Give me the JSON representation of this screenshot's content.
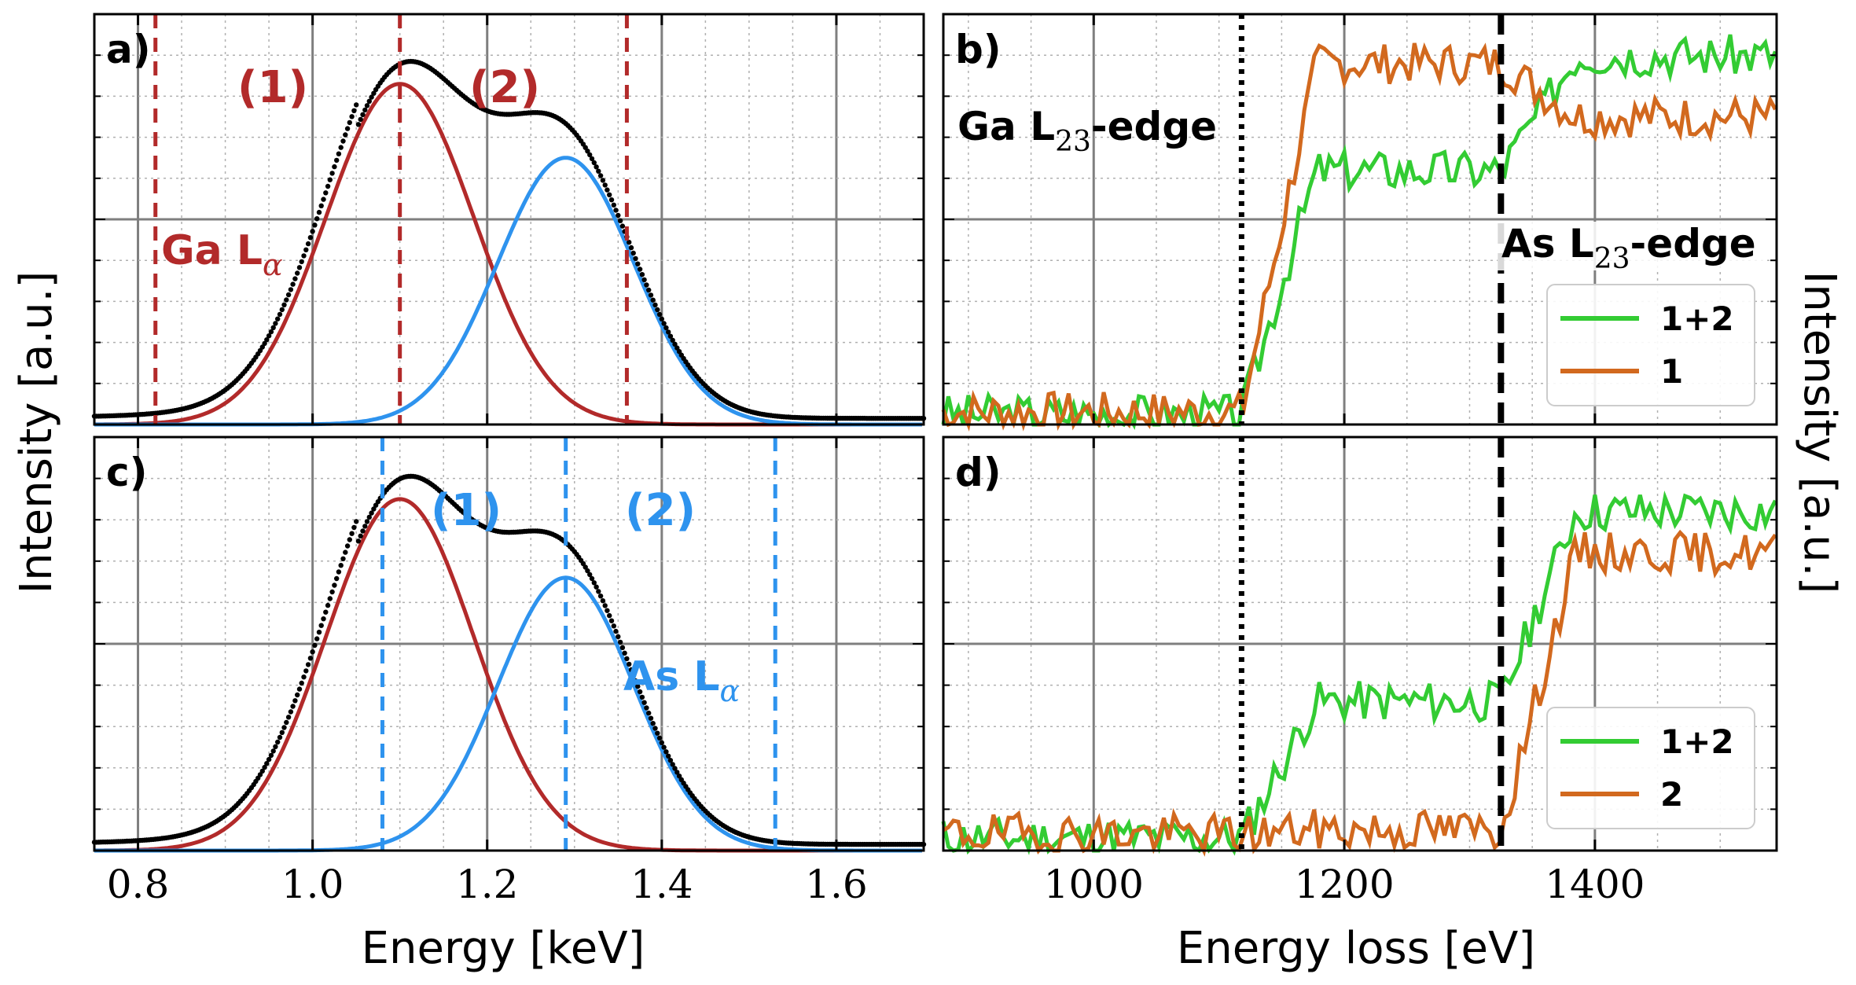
{
  "figure": {
    "ylabel_left": "Intensity [a.u.]",
    "ylabel_right": "Intensity [a.u.]",
    "xlabel_left": "Energy [keV]",
    "xlabel_right": "Energy loss [eV]"
  },
  "colors": {
    "red": "#b22a2a",
    "blue": "#2e93ee",
    "black": "#000000",
    "green": "#33cc33",
    "orange": "#d2691e",
    "major_grid": "#7f7f7f",
    "minor_grid": "#b0b0b0"
  },
  "chart_data": [
    {
      "id": "a",
      "type": "line",
      "panel_label": "a)",
      "xlim": [
        0.75,
        1.7
      ],
      "ylim": [
        0,
        1.0
      ],
      "xticks": [
        0.8,
        1.0,
        1.2,
        1.4,
        1.6
      ],
      "tick_labels": [
        "0.8",
        "1.0",
        "1.2",
        "1.4",
        "1.6"
      ],
      "gaussians": [
        {
          "name": "Ga peak",
          "center": 1.1,
          "amp": 0.83,
          "sigma": 0.085,
          "color": "red"
        },
        {
          "name": "As peak",
          "center": 1.29,
          "amp": 0.65,
          "sigma": 0.078,
          "color": "blue"
        }
      ],
      "data_series": {
        "name": "measured spectrum",
        "color": "black",
        "baseline": 0.015
      },
      "window_lines": {
        "color": "red",
        "x": [
          0.82,
          1.1,
          1.36
        ]
      },
      "annotations": [
        {
          "text": "(1)",
          "x": 0.955,
          "y": 0.86
        },
        {
          "text": "(2)",
          "x": 1.18,
          "y": 0.86
        },
        {
          "text": "Ga L",
          "sub": "α",
          "x": 0.83,
          "y": 0.4
        }
      ]
    },
    {
      "id": "c",
      "type": "line",
      "panel_label": "c)",
      "xlim": [
        0.75,
        1.7
      ],
      "ylim": [
        0,
        1.0
      ],
      "xticks": [
        0.8,
        1.0,
        1.2,
        1.4,
        1.6
      ],
      "tick_labels": [
        "0.8",
        "1.0",
        "1.2",
        "1.4",
        "1.6"
      ],
      "gaussians": [
        {
          "name": "Ga peak",
          "center": 1.1,
          "amp": 0.85,
          "sigma": 0.085,
          "color": "red"
        },
        {
          "name": "As peak",
          "center": 1.29,
          "amp": 0.66,
          "sigma": 0.078,
          "color": "blue"
        }
      ],
      "data_series": {
        "name": "measured spectrum",
        "color": "black",
        "baseline": 0.015
      },
      "window_lines": {
        "color": "blue",
        "x": [
          1.08,
          1.29,
          1.53
        ]
      },
      "annotations": [
        {
          "text": "(1)",
          "x": 1.125,
          "y": 0.77
        },
        {
          "text": "(2)",
          "x": 1.355,
          "y": 0.77
        },
        {
          "text": "As L",
          "sub": "α",
          "x": 1.355,
          "y": 0.37
        }
      ]
    },
    {
      "id": "b",
      "type": "line",
      "panel_label": "b)",
      "xlim": [
        880,
        1545
      ],
      "ylim": [
        0,
        1.0
      ],
      "xticks": [
        1000,
        1200,
        1400
      ],
      "tick_labels": [
        "1000",
        "1200",
        "1400"
      ],
      "edges": [
        {
          "label": "Ga L",
          "sub": "23",
          "suffix": "-edge",
          "x": 1118,
          "style": "dotted"
        },
        {
          "label": "As L",
          "sub": "23",
          "suffix": "-edge",
          "x": 1325,
          "style": "dashed"
        }
      ],
      "series": [
        {
          "name": "1+2",
          "color": "green",
          "pre": 0.025,
          "mid": 0.62,
          "post": 0.9,
          "rise1": 1118,
          "rise2": 1325,
          "seed": 3
        },
        {
          "name": "1",
          "color": "orange",
          "pre": 0.03,
          "mid": 0.88,
          "post": 0.75,
          "rise1": 1118,
          "rise2": 1325,
          "seed": 7
        }
      ],
      "legend": [
        {
          "label": "1+2",
          "color": "green"
        },
        {
          "label": "1",
          "color": "orange"
        }
      ]
    },
    {
      "id": "d",
      "type": "line",
      "panel_label": "d)",
      "xlim": [
        880,
        1545
      ],
      "ylim": [
        0,
        1.0
      ],
      "xticks": [
        1000,
        1200,
        1400
      ],
      "tick_labels": [
        "1000",
        "1200",
        "1400"
      ],
      "edges": [
        {
          "x": 1118,
          "style": "dotted"
        },
        {
          "x": 1325,
          "style": "dashed"
        }
      ],
      "series": [
        {
          "name": "1+2",
          "color": "green",
          "pre": 0.03,
          "mid": 0.36,
          "post": 0.82,
          "rise1": 1118,
          "rise2": 1325,
          "seed": 11
        },
        {
          "name": "2",
          "color": "orange",
          "pre": 0.04,
          "mid": 0.05,
          "post": 0.72,
          "rise1": 1118,
          "rise2": 1325,
          "seed": 19
        }
      ],
      "legend": [
        {
          "label": "1+2",
          "color": "green"
        },
        {
          "label": "2",
          "color": "orange"
        }
      ]
    }
  ]
}
